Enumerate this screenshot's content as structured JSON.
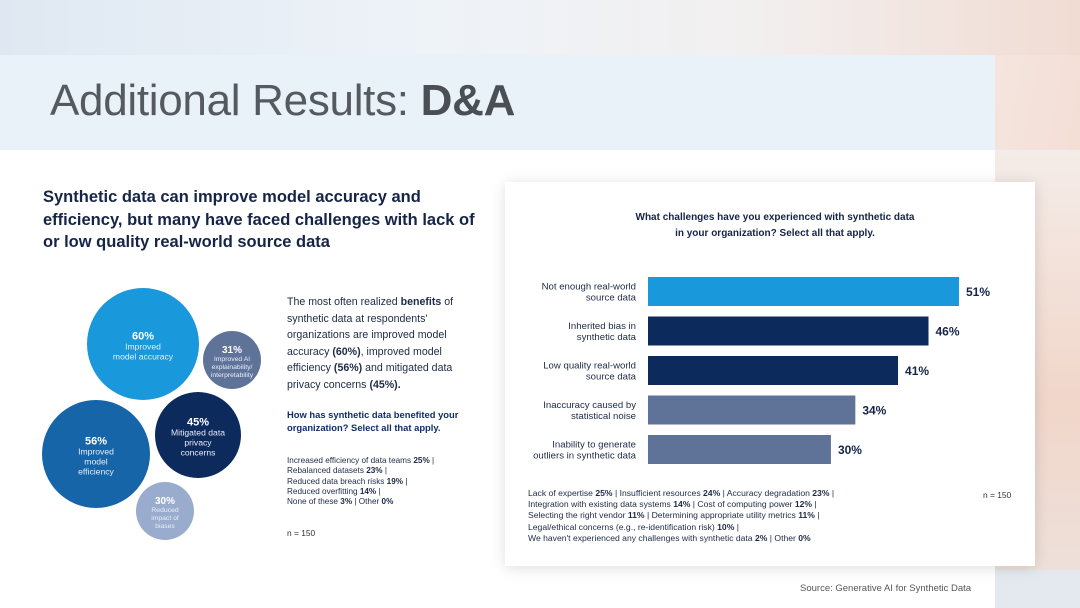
{
  "slide": {
    "title_regular": "Additional Results: ",
    "title_bold": "D&A",
    "headline": "Synthetic data can improve model accuracy and efficiency, but many have faced challenges with lack of or low quality real-world source data",
    "source": "Source: Generative AI for Synthetic Data"
  },
  "benefits": {
    "desc_parts": [
      {
        "t": "The most often realized ",
        "b": false
      },
      {
        "t": "benefits",
        "b": true
      },
      {
        "t": " of synthetic data at respondents' organizations are improved model accuracy ",
        "b": false
      },
      {
        "t": "(60%)",
        "b": true
      },
      {
        "t": ", improved model efficiency ",
        "b": false
      },
      {
        "t": "(56%)",
        "b": true
      },
      {
        "t": " and mitigated data privacy concerns ",
        "b": false
      },
      {
        "t": "(45%).",
        "b": true
      }
    ],
    "question": "How has synthetic data benefited your organization? Select all that apply.",
    "bubbles": [
      {
        "pct": "60%",
        "value": 60,
        "label": [
          "Improved",
          "model accuracy"
        ],
        "color": "#1a98dc"
      },
      {
        "pct": "31%",
        "value": 31,
        "label": [
          "Improved AI",
          "explainability/",
          "interpretability"
        ],
        "color": "#5f7399"
      },
      {
        "pct": "45%",
        "value": 45,
        "label": [
          "Mitigated data",
          "privacy",
          "concerns"
        ],
        "color": "#0d2a5c"
      },
      {
        "pct": "56%",
        "value": 56,
        "label": [
          "Improved",
          "model",
          "efficiency"
        ],
        "color": "#1665a8"
      },
      {
        "pct": "30%",
        "value": 30,
        "label": [
          "Reduced",
          "impact of",
          "biases"
        ],
        "color": "#9aaccd"
      }
    ],
    "others": [
      [
        {
          "t": "Increased efficiency of data teams ",
          "b": false
        },
        {
          "t": "25%",
          "b": true
        },
        {
          "t": " |",
          "b": false
        }
      ],
      [
        {
          "t": "Rebalanced datasets ",
          "b": false
        },
        {
          "t": "23%",
          "b": true
        },
        {
          "t": " |",
          "b": false
        }
      ],
      [
        {
          "t": "Reduced data breach risks ",
          "b": false
        },
        {
          "t": "19%",
          "b": true
        },
        {
          "t": " |",
          "b": false
        }
      ],
      [
        {
          "t": "Reduced overfitting ",
          "b": false
        },
        {
          "t": "14%",
          "b": true
        },
        {
          "t": " |",
          "b": false
        }
      ],
      [
        {
          "t": "None of these ",
          "b": false
        },
        {
          "t": "3%",
          "b": true
        },
        {
          "t": " | Other ",
          "b": false
        },
        {
          "t": "0%",
          "b": true
        }
      ]
    ],
    "n": "n = 150"
  },
  "chart_data": {
    "type": "bar",
    "orientation": "horizontal",
    "title_lines": [
      "What challenges have you experienced with synthetic data",
      "in your organization? Select all that apply."
    ],
    "categories": [
      [
        "Not enough real-world",
        "source data"
      ],
      [
        "Inherited bias in",
        "synthetic data"
      ],
      [
        "Low quality real-world",
        "source data"
      ],
      [
        "Inaccuracy caused by",
        "statistical noise"
      ],
      [
        "Inability to generate",
        "outliers in synthetic data"
      ]
    ],
    "values": [
      51,
      46,
      41,
      34,
      30
    ],
    "value_labels": [
      "51%",
      "46%",
      "41%",
      "34%",
      "30%"
    ],
    "colors": [
      "#1a98dc",
      "#0d2a5c",
      "#0d2a5c",
      "#5f7399",
      "#5f7399"
    ],
    "xlim": [
      0,
      60
    ],
    "grid": false,
    "legend": "none",
    "footnote_lines": [
      [
        {
          "t": "Lack of expertise ",
          "b": false
        },
        {
          "t": "25%",
          "b": true
        },
        {
          "t": " | Insufficient resources ",
          "b": false
        },
        {
          "t": "24%",
          "b": true
        },
        {
          "t": " | Accuracy degradation ",
          "b": false
        },
        {
          "t": "23%",
          "b": true
        },
        {
          "t": " |",
          "b": false
        }
      ],
      [
        {
          "t": "Integration with existing data systems ",
          "b": false
        },
        {
          "t": "14%",
          "b": true
        },
        {
          "t": " | Cost of computing power ",
          "b": false
        },
        {
          "t": "12%",
          "b": true
        },
        {
          "t": " |",
          "b": false
        }
      ],
      [
        {
          "t": "Selecting the right vendor ",
          "b": false
        },
        {
          "t": "11%",
          "b": true
        },
        {
          "t": " | Determining appropriate utility metrics ",
          "b": false
        },
        {
          "t": "11%",
          "b": true
        },
        {
          "t": " |",
          "b": false
        }
      ],
      [
        {
          "t": "Legal/ethical concerns (e.g., re-identification risk) ",
          "b": false
        },
        {
          "t": "10%",
          "b": true
        },
        {
          "t": " |",
          "b": false
        }
      ],
      [
        {
          "t": "We haven't experienced any challenges with synthetic data ",
          "b": false
        },
        {
          "t": "2%",
          "b": true
        },
        {
          "t": " | Other ",
          "b": false
        },
        {
          "t": "0%",
          "b": true
        }
      ]
    ],
    "n": "n = 150"
  }
}
